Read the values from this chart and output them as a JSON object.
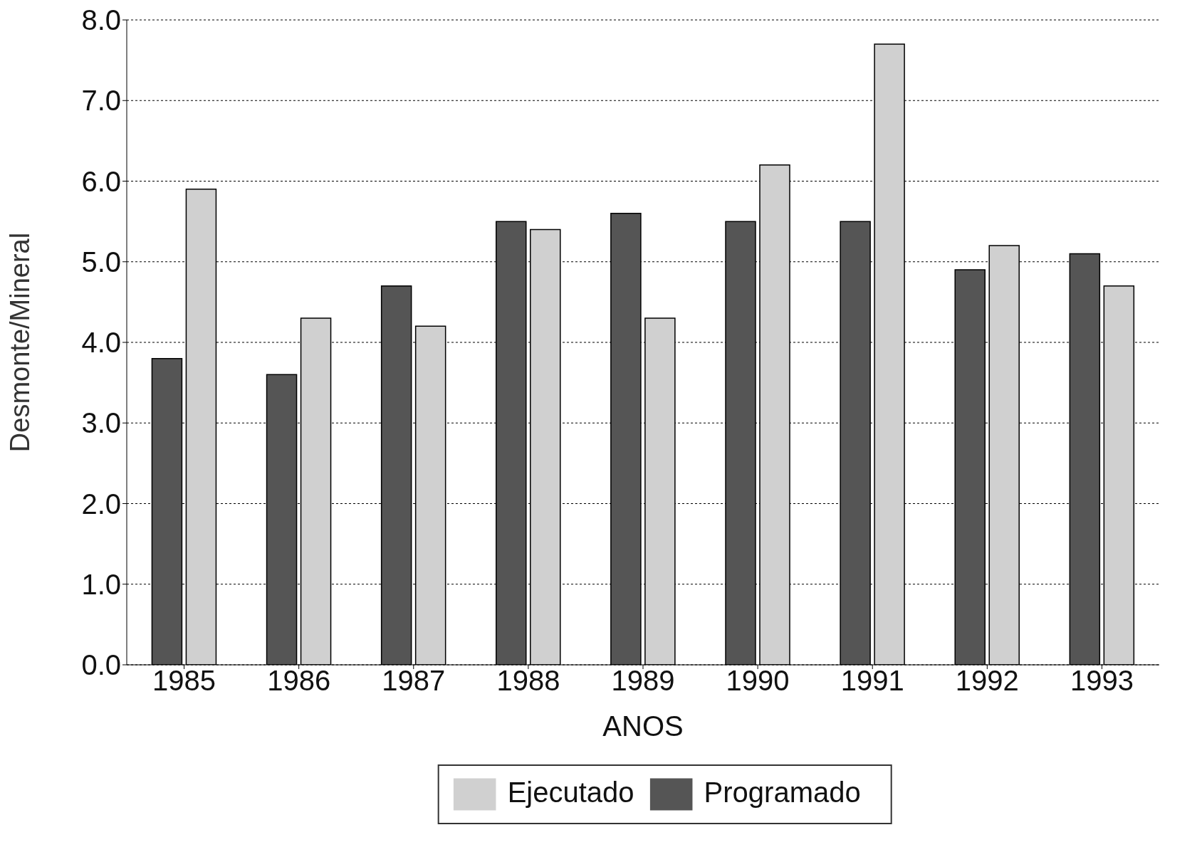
{
  "chart_data": {
    "type": "bar",
    "xlabel": "ANOS",
    "ylabel": "Desmonte/Mineral",
    "categories": [
      "1985",
      "1986",
      "1987",
      "1988",
      "1989",
      "1990",
      "1991",
      "1992",
      "1993"
    ],
    "series": [
      {
        "name": "Programado",
        "color": "#555555",
        "values": [
          3.8,
          3.6,
          4.7,
          5.5,
          5.6,
          5.5,
          5.5,
          4.9,
          5.1
        ]
      },
      {
        "name": "Ejecutado",
        "color": "#d0d0d0",
        "values": [
          5.9,
          4.3,
          4.2,
          5.4,
          4.3,
          6.2,
          7.7,
          5.2,
          4.7
        ]
      }
    ],
    "ylim": [
      0,
      8
    ],
    "yticks": [
      {
        "value": 0,
        "label": "0.0"
      },
      {
        "value": 1,
        "label": "1.0"
      },
      {
        "value": 2,
        "label": "2.0"
      },
      {
        "value": 3,
        "label": "3.0"
      },
      {
        "value": 4,
        "label": "4.0"
      },
      {
        "value": 5,
        "label": "5.0"
      },
      {
        "value": 6,
        "label": "6.0"
      },
      {
        "value": 7,
        "label": "7.0"
      },
      {
        "value": 8,
        "label": "8.0"
      }
    ],
    "grid": "y",
    "legend": "bottom"
  }
}
